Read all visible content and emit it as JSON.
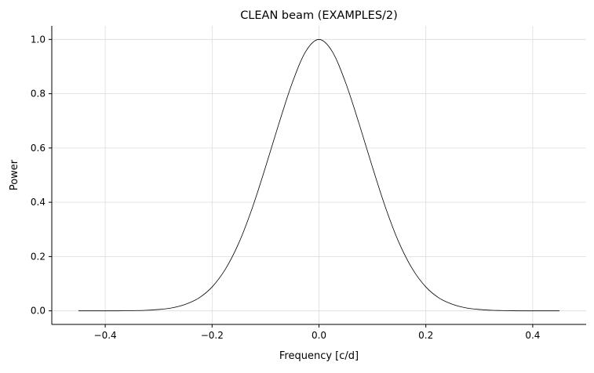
{
  "chart_data": {
    "type": "line",
    "title": "CLEAN beam (EXAMPLES/2)",
    "xlabel": "Frequency [c/d]",
    "ylabel": "Power",
    "xlim": [
      -0.5,
      0.5
    ],
    "ylim": [
      -0.05,
      1.05
    ],
    "xticks": [
      -0.4,
      -0.2,
      0.0,
      0.2,
      0.4
    ],
    "xtick_labels": [
      "−0.4",
      "−0.2",
      "0.0",
      "0.2",
      "0.4"
    ],
    "yticks": [
      0.0,
      0.2,
      0.4,
      0.6,
      0.8,
      1.0
    ],
    "ytick_labels": [
      "0.0",
      "0.2",
      "0.4",
      "0.6",
      "0.8",
      "1.0"
    ],
    "grid": true,
    "line_color": "#000000",
    "series": [
      {
        "x": [
          -0.45,
          -0.425,
          -0.4,
          -0.375,
          -0.35,
          -0.325,
          -0.3,
          -0.275,
          -0.25,
          -0.225,
          -0.2,
          -0.175,
          -0.15,
          -0.125,
          -0.1,
          -0.075,
          -0.05,
          -0.025,
          0.0,
          0.025,
          0.05,
          0.075,
          0.1,
          0.125,
          0.15,
          0.175,
          0.2,
          0.225,
          0.25,
          0.275,
          0.3,
          0.325,
          0.35,
          0.375,
          0.4,
          0.425,
          0.45
        ],
        "values": [
          0.0,
          0.0,
          0.0,
          0.0,
          0.001,
          0.002,
          0.005,
          0.011,
          0.024,
          0.047,
          0.088,
          0.154,
          0.25,
          0.378,
          0.53,
          0.69,
          0.84,
          0.955,
          1.0,
          0.955,
          0.84,
          0.69,
          0.53,
          0.378,
          0.25,
          0.154,
          0.088,
          0.047,
          0.024,
          0.011,
          0.005,
          0.002,
          0.001,
          0.0,
          0.0,
          0.0,
          0.0
        ]
      }
    ]
  }
}
